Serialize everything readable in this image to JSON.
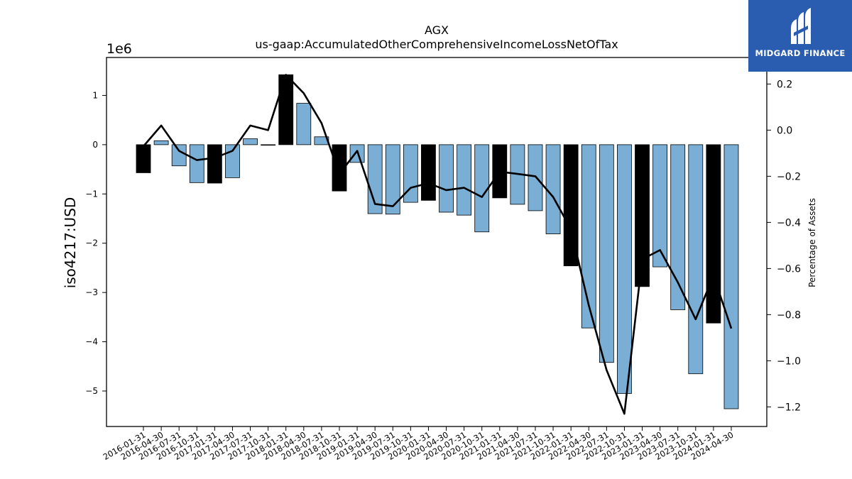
{
  "chart_data": {
    "type": "bar",
    "title": "AGX",
    "subtitle": "us-gaap:AccumulatedOtherComprehensiveIncomeLossNetOfTax",
    "ylabel": "iso4217:USD",
    "y_multiplier_label": "1e6",
    "y2label": "Percentage of Assets",
    "ylim": [
      -5.72,
      1.77
    ],
    "y2lim": [
      -1.285,
      0.315
    ],
    "yticks": [
      1,
      0,
      -1,
      -2,
      -3,
      -4,
      -5
    ],
    "ytick_labels": [
      "1",
      "0",
      "−1",
      "−2",
      "−3",
      "−4",
      "−5"
    ],
    "y2ticks": [
      0.2,
      0.0,
      -0.2,
      -0.4,
      -0.6,
      -0.8,
      -1.0,
      -1.2
    ],
    "y2tick_labels": [
      "0.2",
      "0.0",
      "−0.2",
      "−0.4",
      "−0.6",
      "−0.8",
      "−1.0",
      "−1.2"
    ],
    "categories": [
      "2016-01-31",
      "2016-04-30",
      "2016-07-31",
      "2016-10-31",
      "2017-01-31",
      "2017-04-30",
      "2017-07-31",
      "2017-10-31",
      "2018-01-31",
      "2018-04-30",
      "2018-07-31",
      "2018-10-31",
      "2019-01-31",
      "2019-04-30",
      "2019-07-31",
      "2019-10-31",
      "2020-01-31",
      "2020-04-30",
      "2020-07-31",
      "2020-10-31",
      "2021-01-31",
      "2021-04-30",
      "2021-07-31",
      "2021-10-31",
      "2022-01-31",
      "2022-04-30",
      "2022-07-31",
      "2022-10-31",
      "2023-01-31",
      "2023-04-30",
      "2023-07-31",
      "2023-10-31",
      "2024-01-31",
      "2024-04-30"
    ],
    "values": [
      -0.57,
      0.08,
      -0.43,
      -0.77,
      -0.78,
      -0.67,
      0.12,
      -0.01,
      1.42,
      0.84,
      0.16,
      -0.94,
      -0.36,
      -1.4,
      -1.41,
      -1.17,
      -1.13,
      -1.37,
      -1.43,
      -1.77,
      -1.08,
      -1.21,
      -1.34,
      -1.81,
      -2.46,
      -3.72,
      -4.42,
      -5.05,
      -2.88,
      -2.48,
      -3.35,
      -4.65,
      -3.62,
      -5.36
    ],
    "highlight": [
      true,
      false,
      false,
      false,
      true,
      false,
      false,
      false,
      true,
      false,
      false,
      true,
      false,
      false,
      false,
      false,
      true,
      false,
      false,
      false,
      true,
      false,
      false,
      false,
      true,
      false,
      false,
      false,
      true,
      false,
      false,
      false,
      true,
      false
    ],
    "pct_of_assets": [
      -0.07,
      0.02,
      -0.09,
      -0.13,
      -0.12,
      -0.09,
      0.02,
      0.0,
      0.24,
      0.16,
      0.03,
      -0.19,
      -0.09,
      -0.32,
      -0.33,
      -0.25,
      -0.23,
      -0.26,
      -0.25,
      -0.29,
      -0.18,
      -0.19,
      -0.2,
      -0.29,
      -0.43,
      -0.76,
      -1.04,
      -1.23,
      -0.56,
      -0.52,
      -0.66,
      -0.82,
      -0.63,
      -0.86
    ],
    "colors": {
      "bar": "#7aaed4",
      "highlight": "#000000",
      "line": "#000000",
      "edge": "#000000"
    },
    "grid": false,
    "legend": "none"
  },
  "branding": {
    "logo_text": "MIDGARD FINANCE"
  }
}
